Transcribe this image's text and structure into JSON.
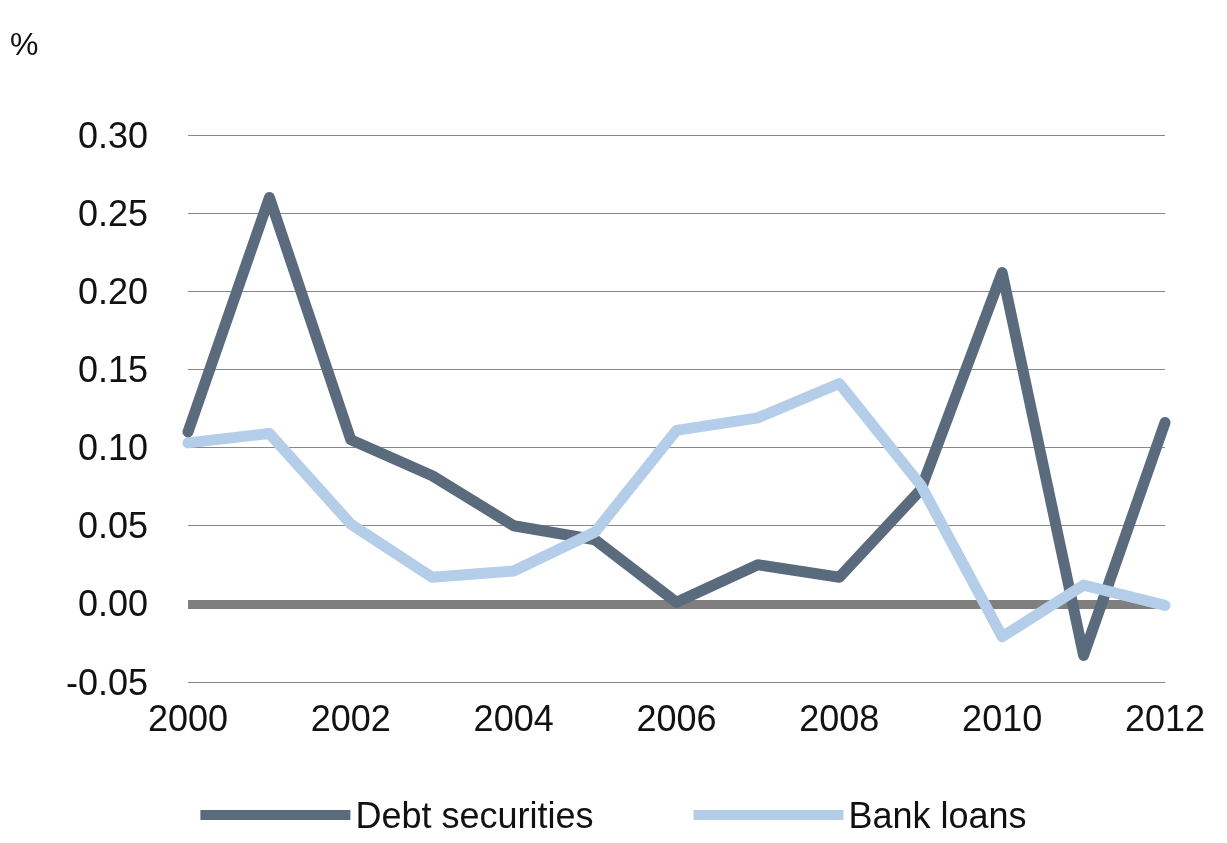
{
  "chart_data": {
    "type": "line",
    "ylabel": "%",
    "x": [
      2000,
      2001,
      2002,
      2003,
      2004,
      2005,
      2006,
      2007,
      2008,
      2009,
      2010,
      2011,
      2012
    ],
    "series": [
      {
        "name": "Debt securities",
        "color": "#5a6b7e",
        "values": [
          0.11,
          0.26,
          0.105,
          0.082,
          0.05,
          0.041,
          0.001,
          0.025,
          0.017,
          0.073,
          0.212,
          -0.033,
          0.116
        ]
      },
      {
        "name": "Bank loans",
        "color": "#b4cde9",
        "values": [
          0.103,
          0.109,
          0.051,
          0.017,
          0.021,
          0.046,
          0.111,
          0.119,
          0.141,
          0.076,
          -0.021,
          0.012,
          -0.001
        ]
      }
    ],
    "xlim": [
      2000,
      2012
    ],
    "xticks": [
      2000,
      2002,
      2004,
      2006,
      2008,
      2010,
      2012
    ],
    "ylim": [
      -0.05,
      0.3
    ],
    "yticks": [
      {
        "value": -0.05,
        "label": "-0.05"
      },
      {
        "value": 0,
        "label": "0.00"
      },
      {
        "value": 0.05,
        "label": "0.05"
      },
      {
        "value": 0.1,
        "label": "0.10"
      },
      {
        "value": 0.15,
        "label": "0.15"
      },
      {
        "value": 0.2,
        "label": "0.20"
      },
      {
        "value": 0.25,
        "label": "0.25"
      },
      {
        "value": 0.3,
        "label": "0.30"
      }
    ],
    "ref_lines": [
      {
        "axis": "y",
        "value": 0,
        "color": "#7f7f7f"
      }
    ],
    "grid": "y",
    "legend": "bottom",
    "marker": "none",
    "line_style": "solid"
  }
}
